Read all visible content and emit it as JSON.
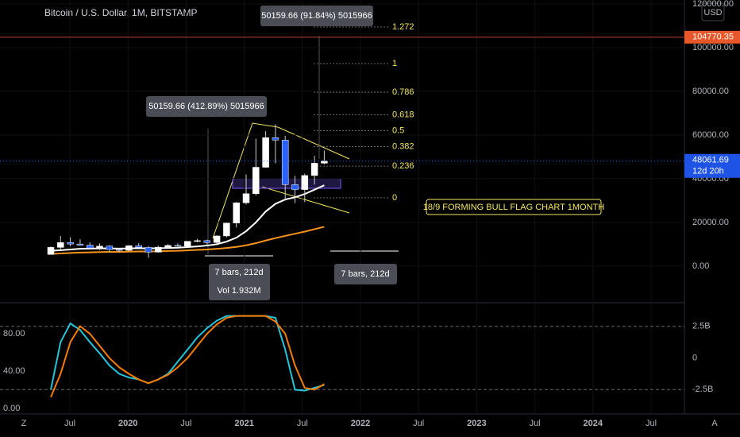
{
  "chart_data": [
    {
      "type": "candlestick",
      "title": "Bitcoin / U.S. Dollar, 1M, BITSTAMP",
      "categories": [
        "2019-05",
        "2019-06",
        "2019-07",
        "2019-08",
        "2019-09",
        "2019-10",
        "2019-11",
        "2019-12",
        "2020-01",
        "2020-02",
        "2020-03",
        "2020-04",
        "2020-05",
        "2020-06",
        "2020-07",
        "2020-08",
        "2020-09",
        "2020-10",
        "2020-11",
        "2020-12",
        "2021-01",
        "2021-02",
        "2021-03",
        "2021-04",
        "2021-05",
        "2021-06",
        "2021-07",
        "2021-08",
        "2021-09"
      ],
      "open": [
        5320,
        8560,
        10800,
        10100,
        9600,
        8300,
        9150,
        7550,
        7200,
        9350,
        8550,
        6400,
        8650,
        9450,
        9150,
        11350,
        11650,
        10780,
        13800,
        19700,
        28990,
        33140,
        45240,
        58800,
        57700,
        37300,
        35040,
        41460,
        47100
      ],
      "high": [
        9000,
        13800,
        13200,
        12300,
        10900,
        10400,
        9500,
        7750,
        9550,
        10500,
        9200,
        9450,
        10080,
        10400,
        11450,
        12480,
        12100,
        14100,
        19900,
        29300,
        41950,
        58350,
        61780,
        64900,
        59600,
        41300,
        42300,
        50500,
        52900
      ],
      "low": [
        5330,
        7500,
        9100,
        9400,
        7700,
        7300,
        6500,
        6450,
        6850,
        8450,
        3850,
        6150,
        8100,
        8900,
        8950,
        10950,
        9850,
        10400,
        13200,
        17600,
        28130,
        32300,
        45000,
        47000,
        30000,
        28800,
        29300,
        37330,
        46600
      ],
      "close": [
        8560,
        10800,
        10100,
        9600,
        8300,
        9150,
        7550,
        7200,
        9350,
        8550,
        6400,
        8650,
        9450,
        9150,
        11350,
        11650,
        10780,
        13800,
        19700,
        28990,
        33140,
        45240,
        58800,
        57700,
        37300,
        35040,
        41460,
        47100,
        48061.69
      ],
      "up_color": "#ffffff",
      "down_color": "#2962ff",
      "ma_series": [
        {
          "color": "#ffffff",
          "values": [
            7000,
            7300,
            7600,
            7900,
            8000,
            8100,
            8100,
            8000,
            8100,
            8200,
            8100,
            8200,
            8300,
            8400,
            8700,
            9000,
            9400,
            10000,
            11200,
            13000,
            16000,
            20000,
            25000,
            28500,
            30500,
            31500,
            33000,
            35000,
            37000
          ]
        },
        {
          "color": "#f7931a",
          "values": [
            5600,
            5800,
            6000,
            6200,
            6300,
            6400,
            6500,
            6500,
            6600,
            6700,
            6700,
            6800,
            6900,
            7000,
            7200,
            7400,
            7600,
            7900,
            8300,
            8800,
            9500,
            10500,
            11700,
            12800,
            13800,
            14800,
            15800,
            16900,
            18000
          ]
        }
      ],
      "ylim": [
        -16400,
        121800
      ],
      "yticks": [
        {
          "value": 0,
          "label": "0.00"
        },
        {
          "value": 20000,
          "label": "20000.00"
        },
        {
          "value": 40000,
          "label": "40000.00"
        },
        {
          "value": 60000,
          "label": "60000.00"
        },
        {
          "value": 80000,
          "label": "80000.00"
        },
        {
          "value": 100000,
          "label": "100000.00"
        },
        {
          "value": 120000,
          "label": "120000.00"
        }
      ],
      "x_labels": [
        "Jul",
        "2020",
        "Jul",
        "2021",
        "Jul",
        "2022",
        "Jul",
        "2023",
        "Jul",
        "2024",
        "Jul"
      ],
      "horizontal_line": 104770.35,
      "last_price": 48061.69,
      "countdown": "12d 20h",
      "fib_levels": [
        1.272,
        1,
        0.786,
        0.618,
        0.5,
        0.382,
        0.236,
        0
      ],
      "annotations": [
        "50159.66 (91.84%) 5015966",
        "50159.66 (412.89%) 5015966",
        "7 bars, 212d",
        "Vol 1.932M",
        "7 bars, 212d",
        "18/9 FORMING BULL FLAG CHART 1MONTH"
      ]
    },
    {
      "type": "line",
      "series": [
        {
          "color": "#26c6da",
          "values": [
            20,
            71,
            91,
            84,
            71,
            59,
            46,
            37,
            33,
            31,
            27,
            31,
            37,
            50,
            63,
            76,
            86,
            94,
            99,
            99,
            99,
            99,
            99,
            97,
            63,
            20,
            19,
            22,
            25
          ]
        },
        {
          "color": "#f57c00",
          "values": [
            12,
            37,
            71,
            88,
            80,
            67,
            54,
            44,
            37,
            31,
            27,
            31,
            36,
            44,
            54,
            67,
            80,
            90,
            97,
            99,
            99,
            99,
            99,
            93,
            80,
            46,
            22,
            20,
            26
          ]
        }
      ],
      "ylim": [
        -9.4,
        109.8
      ],
      "yticks": [
        {
          "value": 0,
          "label": "0.00"
        },
        {
          "value": 40,
          "label": "40.00"
        },
        {
          "value": 80,
          "label": "80.00"
        }
      ],
      "y2lim": [
        -4.69,
        4.125
      ],
      "y2ticks": [
        {
          "value": -2.5,
          "label": "-2.5B"
        },
        0,
        {
          "value": 2.5,
          "label": "2.5B"
        }
      ]
    }
  ],
  "ui": {
    "currency": "USD",
    "left_button": "Z",
    "right_button": "A"
  }
}
